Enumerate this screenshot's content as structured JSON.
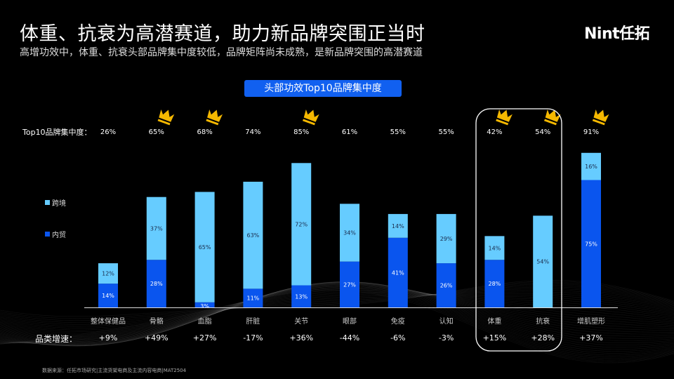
{
  "header": {
    "title": "体重、抗衰为高潜赛道，助力新品牌突围正当时",
    "subtitle": "高增功效中，体重、抗衰头部品牌集中度较低，品牌矩阵尚未成熟，是新品牌突围的高潜赛道",
    "logo": "Nint任拓"
  },
  "chart_data": {
    "type": "bar",
    "stacked": true,
    "title": "头部功效Top10品牌集中度",
    "categories": [
      "整体保健品",
      "骨骼",
      "血脂",
      "肝脏",
      "关节",
      "眼部",
      "免疫",
      "认知",
      "体重",
      "抗衰",
      "增肌塑形"
    ],
    "series": [
      {
        "name": "内贸",
        "color": "#0a55ee",
        "values": [
          14,
          28,
          3,
          11,
          13,
          27,
          41,
          26,
          28,
          0,
          75
        ]
      },
      {
        "name": "跨境",
        "color": "#66ccff",
        "values": [
          12,
          37,
          65,
          63,
          72,
          34,
          14,
          29,
          14,
          54,
          16
        ]
      }
    ],
    "legend_position": "left",
    "grid": false,
    "ylim": [
      0,
      100
    ],
    "top10_label": "Top10品牌集中度：",
    "top10_concentration": [
      "26%",
      "65%",
      "68%",
      "74%",
      "85%",
      "61%",
      "55%",
      "55%",
      "42%",
      "54%",
      "91%"
    ],
    "crowned": [
      false,
      true,
      true,
      false,
      true,
      false,
      false,
      false,
      true,
      true,
      true
    ],
    "growth_label": "品类增速：",
    "growth": [
      "+9%",
      "+49%",
      "+27%",
      "-17%",
      "+36%",
      "-44%",
      "-6%",
      "-3%",
      "+15%",
      "+28%",
      "+37%"
    ],
    "highlighted": [
      "体重",
      "抗衰"
    ]
  },
  "footer": {
    "source": "数据来源：任拓市场研究|主流货架电商及主流内容电商|MAT2504"
  }
}
